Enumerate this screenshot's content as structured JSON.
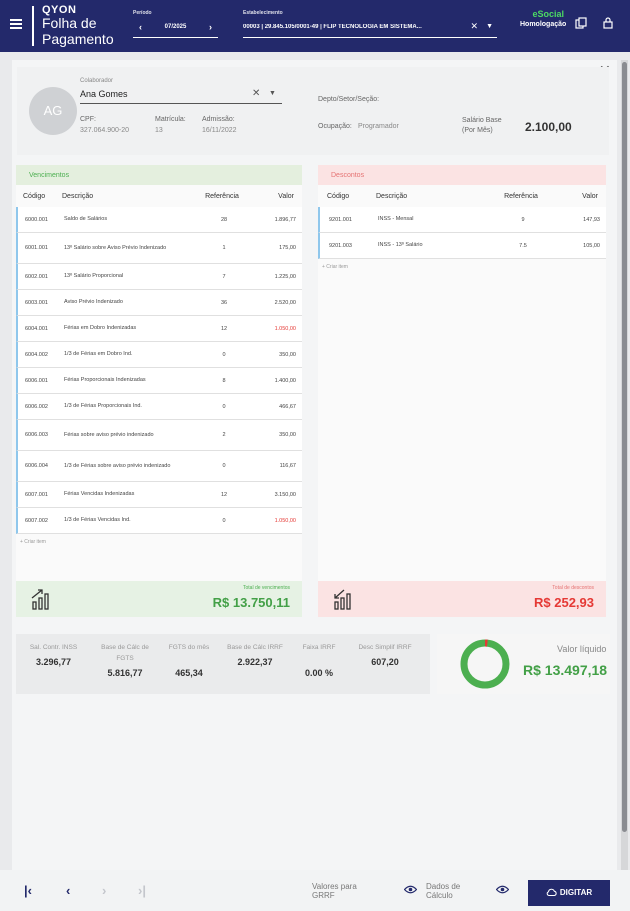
{
  "header": {
    "brand": "QYON",
    "title": "Folha de Pagamento",
    "periodo_label": "Período",
    "periodo_value": "07/2025",
    "estab_label": "Estabelecimento",
    "estab_value": "00003 | 29.845.105/0001-49 | FLIP TECNOLOGIA EM SISTEMA...",
    "esocial": "eSocial",
    "ambiente": "Homologação"
  },
  "employee": {
    "avatar": "AG",
    "colaborador_label": "Colaborador",
    "name": "Ana Gomes",
    "cpf_label": "CPF:",
    "cpf": "327.064.900-20",
    "matricula_label": "Matrícula:",
    "matricula": "13",
    "admissao_label": "Admissão:",
    "admissao": "16/11/2022",
    "depto_label": "Depto/Setor/Seção:",
    "ocupacao_label": "Ocupação:",
    "ocupacao": "Programador",
    "salario_label": "Salário Base (Por Mês)",
    "salario": "2.100,00"
  },
  "vencimentos": {
    "title": "Vencimentos",
    "headers": [
      "Código",
      "Descrição",
      "Referência",
      "Valor"
    ],
    "rows": [
      {
        "cod": "6000.001",
        "desc": "Saldo de Salários",
        "ref": "28",
        "val": "1.896,77",
        "red": false,
        "tall": false
      },
      {
        "cod": "6001.001",
        "desc": "13º Salário sobre Aviso Prévio Indenizado",
        "ref": "1",
        "val": "175,00",
        "red": false,
        "tall": true
      },
      {
        "cod": "6002.001",
        "desc": "13º Salário Proporcional",
        "ref": "7",
        "val": "1.225,00",
        "red": false,
        "tall": false
      },
      {
        "cod": "6003.001",
        "desc": "Aviso Prévio Indenizado",
        "ref": "36",
        "val": "2.520,00",
        "red": false,
        "tall": false
      },
      {
        "cod": "6004.001",
        "desc": "Férias em Dobro Indenizadas",
        "ref": "12",
        "val": "1.050,00",
        "red": true,
        "tall": false
      },
      {
        "cod": "6004.002",
        "desc": "1/3 de Férias em Dobro Ind.",
        "ref": "0",
        "val": "350,00",
        "red": false,
        "tall": false
      },
      {
        "cod": "6006.001",
        "desc": "Férias Proporcionais Indenizadas",
        "ref": "8",
        "val": "1.400,00",
        "red": false,
        "tall": false
      },
      {
        "cod": "6006.002",
        "desc": "1/3 de Férias Proporcionais Ind.",
        "ref": "0",
        "val": "466,67",
        "red": false,
        "tall": false
      },
      {
        "cod": "6006.003",
        "desc": "Férias sobre aviso prévio indenizado",
        "ref": "2",
        "val": "350,00",
        "red": false,
        "tall": true
      },
      {
        "cod": "6006.004",
        "desc": "1/3 de Férias sobre aviso prévio indenizado",
        "ref": "0",
        "val": "116,67",
        "red": false,
        "tall": true
      },
      {
        "cod": "6007.001",
        "desc": "Férias Vencidas Indenizadas",
        "ref": "12",
        "val": "3.150,00",
        "red": false,
        "tall": false
      },
      {
        "cod": "6007.002",
        "desc": "1/3 de Férias Vencidas Ind.",
        "ref": "0",
        "val": "1.050,00",
        "red": true,
        "tall": false
      }
    ],
    "criar": "+ Criar item",
    "total_label": "Total de vencimentos",
    "total": "R$ 13.750,11"
  },
  "descontos": {
    "title": "Descontos",
    "headers": [
      "Código",
      "Descrição",
      "Referência",
      "Valor"
    ],
    "rows": [
      {
        "cod": "9201.001",
        "desc": "INSS - Mensal",
        "ref": "9",
        "val": "147,93"
      },
      {
        "cod": "9201.003",
        "desc": "INSS - 13º Salário",
        "ref": "7.5",
        "val": "105,00"
      }
    ],
    "criar": "+ Criar item",
    "total_label": "Total de descontos",
    "total": "R$ 252,93"
  },
  "summary": [
    {
      "label": "Sal. Contr. INSS",
      "value": "3.296,77"
    },
    {
      "label": "Base de Cálc de FGTS",
      "value": "5.816,77"
    },
    {
      "label": "FGTS do mês",
      "value": "465,34"
    },
    {
      "label": "Base de Cálc IRRF",
      "value": "2.922,37"
    },
    {
      "label": "Faixa IRRF",
      "value": "0.00 %"
    },
    {
      "label": "Desc Simplif IRRF",
      "value": "607,20"
    }
  ],
  "liquido": {
    "label": "Valor líquido",
    "value": "R$ 13.497,18",
    "discount_fraction": 0.018
  },
  "footer": {
    "valores_label": "Valores para GRRF",
    "dados_label": "Dados de Cálculo",
    "digitar": "DIGITAR"
  },
  "colors": {
    "primary": "#23296b",
    "green": "#43a047",
    "red": "#e53935"
  }
}
